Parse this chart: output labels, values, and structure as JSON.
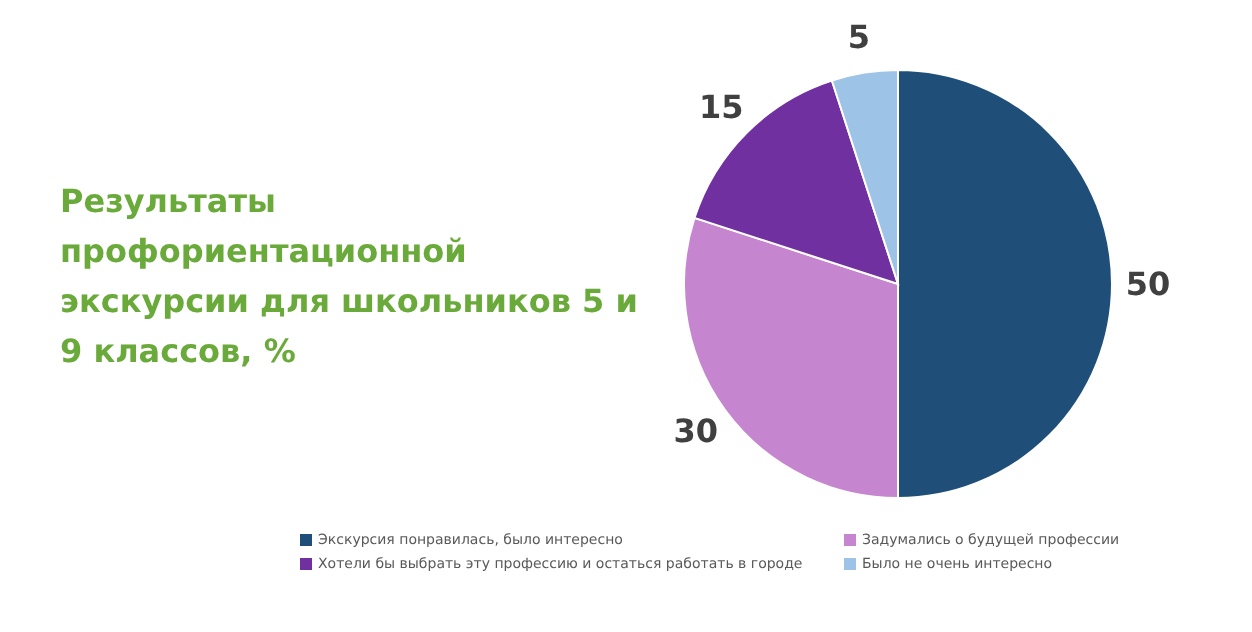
{
  "chart_data": {
    "type": "pie",
    "title": "Результаты профориентационной экскурсии для школьников 5 и 9 классов, %",
    "categories": [
      "Экскурсия понравилась, было интересно",
      "Задумались о будущей профессии",
      "Хотели бы выбрать эту профессию и остаться работать в городе",
      "Было не очень интересно"
    ],
    "values": [
      50,
      30,
      15,
      5
    ],
    "colors": [
      "#1f4e79",
      "#c585cf",
      "#7030a0",
      "#9dc3e6"
    ],
    "data_labels": true,
    "legend": "bottom"
  }
}
